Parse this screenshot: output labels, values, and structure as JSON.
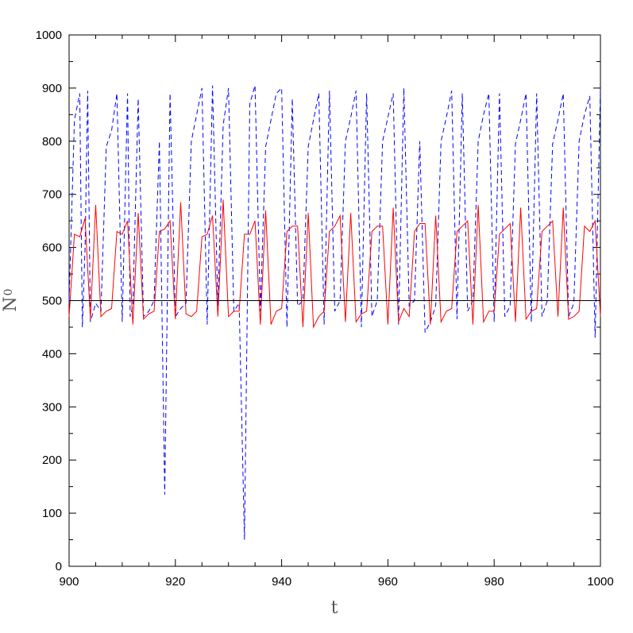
{
  "chart_data": {
    "type": "line",
    "xlabel": "t",
    "ylabel_main": "N",
    "ylabel_sub": "0",
    "xlim": [
      900,
      1000
    ],
    "ylim": [
      0,
      1000
    ],
    "x_ticks": [
      "900",
      "920",
      "940",
      "960",
      "980",
      "1000"
    ],
    "y_ticks": [
      "0",
      "100",
      "200",
      "300",
      "400",
      "500",
      "600",
      "700",
      "800",
      "900",
      "1000"
    ],
    "reference_line": {
      "y": 500,
      "color": "#000000"
    },
    "series": [
      {
        "style": "dashed",
        "color": "#0000ff",
        "x": [
          900,
          901,
          902,
          902.5,
          903,
          903.5,
          904,
          905,
          906,
          907,
          908,
          909,
          910,
          911,
          911.5,
          912,
          913,
          914,
          915,
          916,
          917,
          918,
          919,
          920,
          921,
          922,
          923,
          924,
          925,
          926,
          927,
          928,
          929,
          930,
          931,
          932,
          933,
          934,
          935,
          936,
          937,
          938,
          939,
          940,
          941,
          942,
          943,
          944,
          945,
          946,
          947,
          948,
          949,
          950,
          951,
          952,
          953,
          954,
          955,
          956,
          957,
          958,
          959,
          960,
          961,
          962,
          963,
          964,
          965,
          966,
          967,
          968,
          969,
          970,
          971,
          972,
          973,
          974,
          975,
          976,
          977,
          978,
          979,
          980,
          981,
          982,
          983,
          984,
          985,
          986,
          987,
          988,
          989,
          990,
          991,
          992,
          993,
          994,
          995,
          996,
          997,
          998,
          999,
          1000
        ],
        "y": [
          500,
          840,
          890,
          450,
          600,
          895,
          460,
          495,
          480,
          790,
          820,
          890,
          460,
          890,
          470,
          490,
          880,
          470,
          480,
          500,
          800,
          135,
          890,
          470,
          485,
          495,
          800,
          850,
          900,
          455,
          905,
          490,
          830,
          900,
          480,
          495,
          50,
          870,
          905,
          480,
          790,
          840,
          890,
          900,
          450,
          880,
          490,
          500,
          790,
          840,
          890,
          455,
          895,
          480,
          500,
          800,
          845,
          895,
          450,
          890,
          470,
          500,
          800,
          845,
          890,
          455,
          900,
          490,
          500,
          800,
          440,
          460,
          490,
          800,
          845,
          895,
          465,
          890,
          480,
          500,
          800,
          850,
          890,
          460,
          890,
          470,
          490,
          795,
          840,
          890,
          460,
          890,
          470,
          500,
          795,
          840,
          890,
          470,
          495,
          800,
          850,
          885,
          430,
          900
        ]
      },
      {
        "style": "solid",
        "color": "#ff0000",
        "x": [
          900,
          901,
          902,
          903,
          904,
          905,
          906,
          907,
          908,
          909,
          910,
          911,
          912,
          913,
          914,
          915,
          916,
          917,
          918,
          919,
          920,
          921,
          922,
          923,
          924,
          925,
          926,
          927,
          928,
          929,
          930,
          931,
          932,
          933,
          934,
          935,
          936,
          937,
          938,
          939,
          940,
          941,
          942,
          943,
          944,
          945,
          946,
          947,
          948,
          949,
          950,
          951,
          952,
          953,
          954,
          955,
          956,
          957,
          958,
          959,
          960,
          961,
          962,
          963,
          964,
          965,
          966,
          967,
          968,
          969,
          970,
          971,
          972,
          973,
          974,
          975,
          976,
          977,
          978,
          979,
          980,
          981,
          982,
          983,
          984,
          985,
          986,
          987,
          988,
          989,
          990,
          991,
          992,
          993,
          994,
          995,
          996,
          997,
          998,
          999,
          1000
        ],
        "y": [
          470,
          625,
          620,
          655,
          465,
          680,
          470,
          480,
          485,
          630,
          625,
          650,
          455,
          665,
          465,
          475,
          480,
          630,
          635,
          650,
          465,
          685,
          475,
          470,
          480,
          620,
          625,
          660,
          470,
          690,
          470,
          480,
          480,
          625,
          625,
          650,
          455,
          670,
          455,
          480,
          485,
          630,
          640,
          640,
          450,
          665,
          450,
          470,
          480,
          630,
          640,
          660,
          460,
          665,
          460,
          475,
          480,
          630,
          640,
          640,
          455,
          675,
          460,
          485,
          470,
          630,
          645,
          645,
          455,
          660,
          460,
          480,
          485,
          630,
          640,
          650,
          455,
          680,
          460,
          480,
          480,
          625,
          635,
          645,
          460,
          675,
          465,
          480,
          485,
          630,
          640,
          650,
          470,
          675,
          465,
          470,
          480,
          640,
          630,
          650,
          470
        ]
      }
    ]
  }
}
